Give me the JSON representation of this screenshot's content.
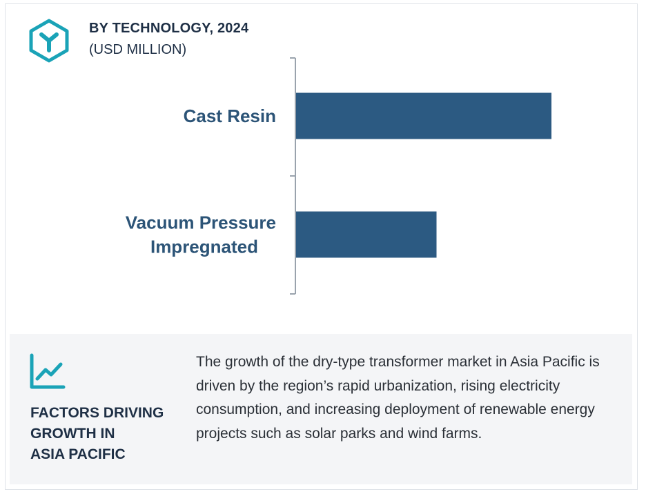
{
  "header": {
    "icon": "hexagon-y-logo-icon",
    "title": "BY TECHNOLOGY, 2024",
    "subtitle": "(USD MILLION)"
  },
  "chart_data": {
    "type": "bar",
    "orientation": "horizontal",
    "title": "BY TECHNOLOGY, 2024",
    "subtitle": "(USD MILLION)",
    "categories": [
      "Cast Resin",
      "Vacuum Pressure Impregnated"
    ],
    "category_lines": [
      [
        "Cast Resin"
      ],
      [
        "Vacuum Pressure",
        "Impregnated"
      ]
    ],
    "values": [
      100,
      55
    ],
    "value_note": "relative bar lengths; no value axis or data labels shown",
    "xlim": [
      0,
      100
    ],
    "bar_color": "#2c5a82",
    "axis_color": "#9aa3ad",
    "label_color": "#2c5477",
    "grid": false,
    "legend": "none"
  },
  "bottom": {
    "icon": "trend-chart-icon",
    "heading_lines": [
      "FACTORS DRIVING",
      "GROWTH IN",
      "ASIA PACIFIC"
    ],
    "description": "The growth of the dry-type transformer market in Asia Pacific is driven by the region’s rapid urbanization, rising electricity consumption, and increasing deployment of renewable energy projects such as solar parks and wind farms."
  },
  "colors": {
    "accent": "#1aa3b7",
    "heading": "#1e2f45",
    "panel_bg": "#f4f5f7"
  }
}
